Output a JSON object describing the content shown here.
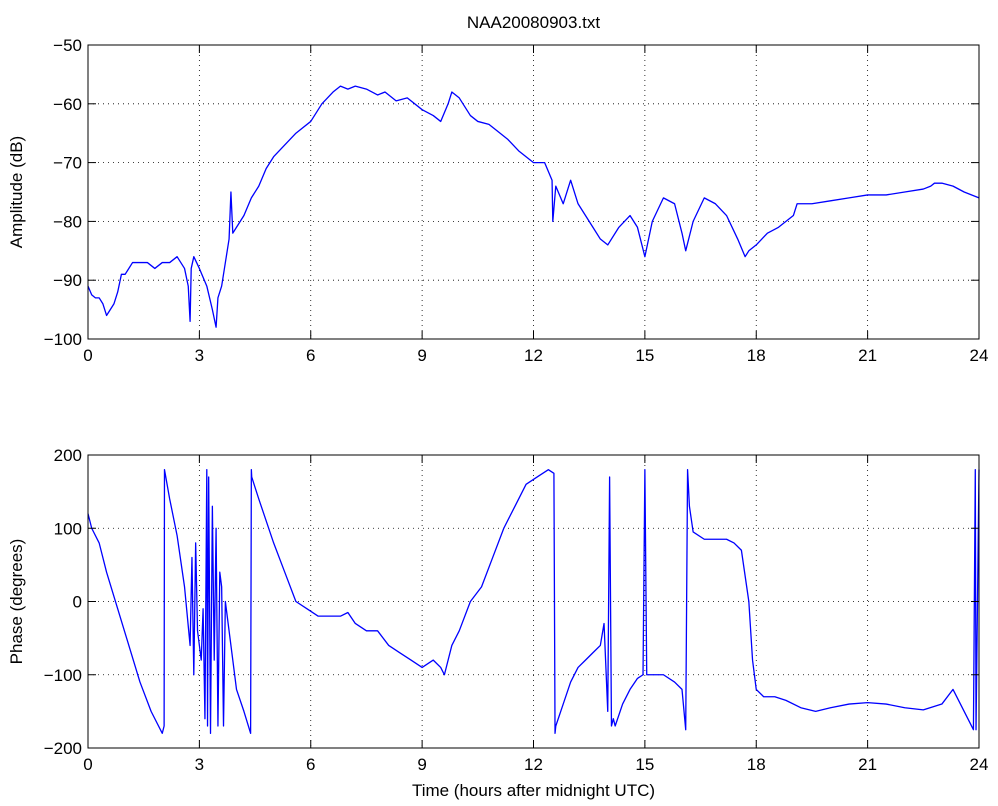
{
  "title": "NAA20080903.txt",
  "colors": {
    "line": "#0000ff",
    "axes": "#000000",
    "grid": "#000000",
    "background": "#ffffff"
  },
  "chart_data": [
    {
      "type": "line",
      "title": "NAA20080903.txt",
      "xlabel": "",
      "ylabel": "Amplitude (dB)",
      "xlim": [
        0,
        24
      ],
      "ylim": [
        -100,
        -50
      ],
      "xticks": [
        "0",
        "3",
        "6",
        "9",
        "12",
        "15",
        "18",
        "21",
        "24"
      ],
      "yticks": [
        "-100",
        "-90",
        "-80",
        "-70",
        "-60",
        "-50"
      ],
      "grid": true,
      "series": [
        {
          "x": [
            0,
            0.1,
            0.2,
            0.3,
            0.4,
            0.5,
            0.6,
            0.7,
            0.8,
            0.9,
            1.0,
            1.2,
            1.4,
            1.6,
            1.8,
            2.0,
            2.2,
            2.4,
            2.6,
            2.7,
            2.75,
            2.78,
            2.85,
            3.0,
            3.2,
            3.35,
            3.45,
            3.5,
            3.6,
            3.7,
            3.8,
            3.85,
            3.9,
            4.0,
            4.2,
            4.4,
            4.6,
            4.8,
            5.0,
            5.3,
            5.6,
            6.0,
            6.3,
            6.6,
            6.8,
            7.0,
            7.2,
            7.5,
            7.8,
            8.0,
            8.3,
            8.6,
            9.0,
            9.3,
            9.5,
            9.7,
            9.8,
            10.0,
            10.3,
            10.5,
            10.8,
            11.0,
            11.3,
            11.6,
            12.0,
            12.3,
            12.5,
            12.52,
            12.6,
            12.8,
            13.0,
            13.2,
            13.4,
            13.6,
            13.8,
            14.0,
            14.3,
            14.6,
            14.8,
            15.0,
            15.2,
            15.5,
            15.8,
            16.0,
            16.1,
            16.3,
            16.6,
            16.9,
            17.2,
            17.5,
            17.7,
            17.8,
            18.0,
            18.3,
            18.6,
            19.0,
            19.1,
            19.2,
            19.5,
            20.0,
            20.5,
            21.0,
            21.5,
            22.0,
            22.5,
            22.7,
            22.8,
            23.0,
            23.3,
            23.6,
            24.0
          ],
          "y": [
            -91,
            -92.5,
            -93,
            -93,
            -94,
            -96,
            -95,
            -94,
            -92,
            -89,
            -89,
            -87,
            -87,
            -87,
            -88,
            -87,
            -87,
            -86,
            -88,
            -91,
            -97,
            -88,
            -86,
            -88,
            -91,
            -95,
            -98,
            -93,
            -91,
            -87,
            -83,
            -75,
            -82,
            -81,
            -79,
            -76,
            -74,
            -71,
            -69,
            -67,
            -65,
            -63,
            -60,
            -58,
            -57,
            -57.5,
            -57,
            -57.5,
            -58.5,
            -58,
            -59.5,
            -59,
            -61,
            -62,
            -63,
            -60,
            -58,
            -59,
            -62,
            -63,
            -63.5,
            -64.5,
            -66,
            -68,
            -70,
            -70,
            -73,
            -80,
            -74,
            -77,
            -73,
            -77,
            -79,
            -81,
            -83,
            -84,
            -81,
            -79,
            -81,
            -86,
            -80,
            -76,
            -77,
            -82,
            -85,
            -80,
            -76,
            -77,
            -79,
            -83,
            -86,
            -85,
            -84,
            -82,
            -81,
            -79,
            -77,
            -77,
            -77,
            -76.5,
            -76,
            -75.5,
            -75.5,
            -75,
            -74.5,
            -74,
            -73.5,
            -73.5,
            -74,
            -75,
            -76
          ]
        }
      ]
    },
    {
      "type": "line",
      "title": "",
      "xlabel": "Time (hours after midnight UTC)",
      "ylabel": "Phase (degrees)",
      "xlim": [
        0,
        24
      ],
      "ylim": [
        -200,
        200
      ],
      "xticks": [
        "0",
        "3",
        "6",
        "9",
        "12",
        "15",
        "18",
        "21",
        "24"
      ],
      "yticks": [
        "-200",
        "-100",
        "0",
        "100",
        "200"
      ],
      "grid": true,
      "series": [
        {
          "x": [
            0,
            0.1,
            0.3,
            0.5,
            0.8,
            1.1,
            1.4,
            1.7,
            2.0,
            2.05,
            2.06,
            2.2,
            2.4,
            2.6,
            2.75,
            2.8,
            2.85,
            2.9,
            2.95,
            3.0,
            3.05,
            3.1,
            3.15,
            3.2,
            3.22,
            3.25,
            3.3,
            3.35,
            3.4,
            3.45,
            3.5,
            3.55,
            3.6,
            3.65,
            3.7,
            3.8,
            3.9,
            4.0,
            4.2,
            4.38,
            4.4,
            4.41,
            4.6,
            4.8,
            5.0,
            5.3,
            5.6,
            5.9,
            6.2,
            6.5,
            6.8,
            7.0,
            7.2,
            7.5,
            7.8,
            8.1,
            8.4,
            8.7,
            9.0,
            9.3,
            9.5,
            9.6,
            9.7,
            9.8,
            10.0,
            10.3,
            10.6,
            10.9,
            11.2,
            11.5,
            11.8,
            12.1,
            12.4,
            12.55,
            12.58,
            12.6,
            12.8,
            13.0,
            13.2,
            13.4,
            13.6,
            13.8,
            13.9,
            14.0,
            14.05,
            14.1,
            14.15,
            14.2,
            14.4,
            14.6,
            14.8,
            14.95,
            15.0,
            15.05,
            15.2,
            15.5,
            15.8,
            16.0,
            16.1,
            16.15,
            16.2,
            16.3,
            16.6,
            16.9,
            17.2,
            17.4,
            17.6,
            17.8,
            17.9,
            18.0,
            18.2,
            18.5,
            18.8,
            19.2,
            19.6,
            20.0,
            20.5,
            21.0,
            21.5,
            22.0,
            22.5,
            23.0,
            23.3,
            23.5,
            23.7,
            23.85,
            23.9,
            23.92,
            24.0
          ],
          "y": [
            120,
            100,
            80,
            40,
            -10,
            -60,
            -110,
            -150,
            -180,
            -170,
            180,
            140,
            90,
            20,
            -60,
            60,
            -100,
            80,
            -40,
            -60,
            -80,
            -10,
            -160,
            180,
            -170,
            170,
            -180,
            130,
            -80,
            100,
            -170,
            40,
            20,
            -170,
            0,
            -40,
            -80,
            -120,
            -150,
            -180,
            180,
            170,
            140,
            110,
            80,
            40,
            0,
            -10,
            -20,
            -20,
            -20,
            -15,
            -30,
            -40,
            -40,
            -60,
            -70,
            -80,
            -90,
            -80,
            -90,
            -100,
            -80,
            -60,
            -40,
            0,
            20,
            60,
            100,
            130,
            160,
            170,
            180,
            175,
            -180,
            -170,
            -140,
            -110,
            -90,
            -80,
            -70,
            -60,
            -30,
            -150,
            170,
            -170,
            -160,
            -170,
            -140,
            -120,
            -105,
            -100,
            180,
            -100,
            -100,
            -100,
            -110,
            -120,
            -175,
            180,
            130,
            95,
            85,
            85,
            85,
            80,
            70,
            0,
            -80,
            -120,
            -130,
            -130,
            -135,
            -145,
            -150,
            -145,
            -140,
            -138,
            -140,
            -145,
            -148,
            -140,
            -120,
            -140,
            -160,
            -175,
            180,
            -175,
            180
          ]
        }
      ]
    }
  ]
}
